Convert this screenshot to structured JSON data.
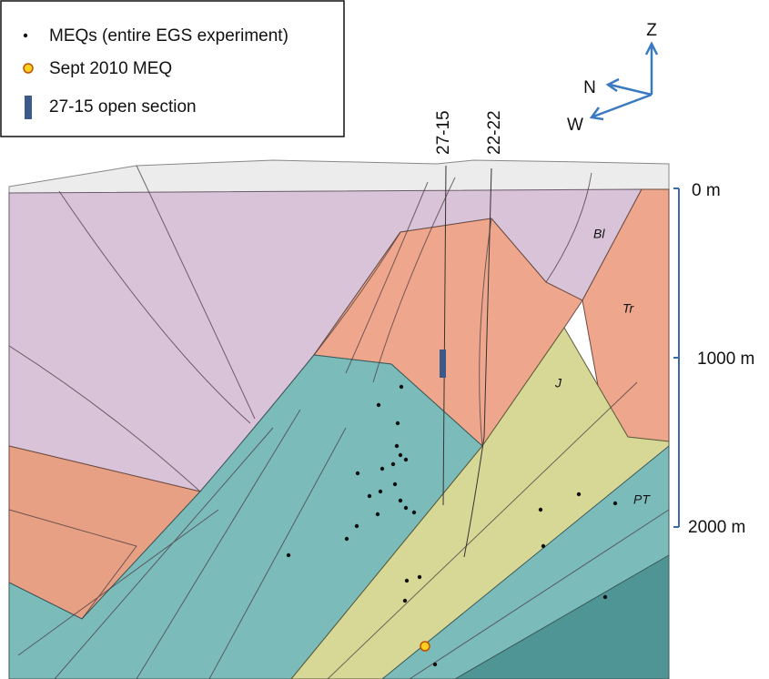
{
  "legend": {
    "items": [
      "MEQs (entire EGS experiment)",
      "Sept 2010 MEQ",
      "27-15 open section"
    ]
  },
  "compass": {
    "z": "Z",
    "n": "N",
    "w": "W"
  },
  "wells": [
    "27-15",
    "22-22"
  ],
  "depth_scale": [
    "0 m",
    "1000 m",
    "2000 m"
  ],
  "units": [
    "Bl",
    "Tr",
    "J",
    "PT"
  ]
}
